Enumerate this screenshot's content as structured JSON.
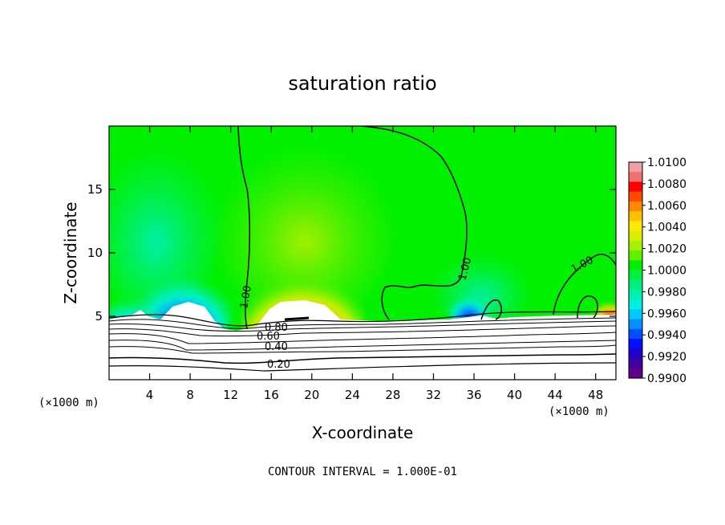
{
  "chart_data": {
    "type": "heatmap",
    "title": "saturation ratio",
    "xlabel": "X-coordinate",
    "ylabel": "Z-coordinate",
    "x_unit": "(×1000 m)",
    "y_unit": "(×1000 m)",
    "xlim": [
      0,
      50
    ],
    "ylim": [
      0,
      20
    ],
    "x_ticks": [
      4,
      8,
      12,
      16,
      20,
      24,
      28,
      32,
      36,
      40,
      44,
      48
    ],
    "y_ticks": [
      5,
      10,
      15
    ],
    "colorbar": {
      "min": 0.99,
      "max": 1.01,
      "labels": [
        "1.0100",
        "1.0080",
        "1.0060",
        "1.0040",
        "1.0020",
        "1.0000",
        "0.9980",
        "0.9960",
        "0.9940",
        "0.9920",
        "0.9900"
      ],
      "colors": [
        "#f0a0a0",
        "#f07070",
        "#ff0000",
        "#ff4800",
        "#ff8800",
        "#ffc000",
        "#ffe800",
        "#d8f000",
        "#a8f000",
        "#60f000",
        "#00f000",
        "#00f040",
        "#00f080",
        "#00f0b0",
        "#00f0e0",
        "#00c8ff",
        "#0090ff",
        "#0050ff",
        "#0010ff",
        "#2000c8",
        "#4000a0",
        "#60008c"
      ]
    },
    "contour_labels": [
      "1.00",
      "1.00",
      "1.00",
      "0.80",
      "0.60",
      "0.40",
      "0.20"
    ],
    "footnote": "CONTOUR INTERVAL = 1.000E-01"
  }
}
